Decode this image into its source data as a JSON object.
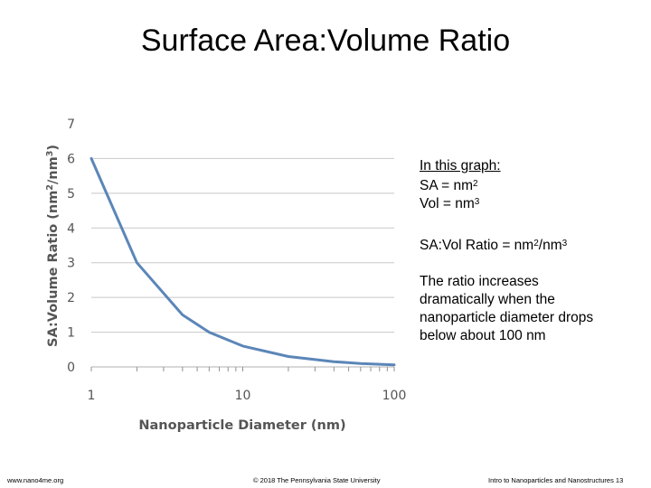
{
  "slide": {
    "title": "Surface Area:Volume Ratio"
  },
  "notes": {
    "heading": "In this graph:",
    "sa_prefix": "SA = nm",
    "sa_exp": "2",
    "vol_prefix": "Vol = nm",
    "vol_exp": "3",
    "ratio_prefix": "SA:Vol Ratio = nm",
    "ratio_exp1": "2",
    "ratio_mid": "/nm",
    "ratio_exp2": "3",
    "line1": "The ratio increases",
    "line2": "dramatically when the",
    "line3": "nanoparticle diameter drops",
    "line4": "below about 100 nm"
  },
  "footer": {
    "left": "www.nano4me.org",
    "center": "© 2018 The Pennsylvania State University",
    "right": "Intro to Nanoparticles and Nanostructures 13"
  },
  "chart_data": {
    "type": "line",
    "xscale": "log",
    "xlim": [
      1,
      100
    ],
    "ylim": [
      0,
      7
    ],
    "xticks": [
      1,
      10,
      100
    ],
    "xtick_labels": [
      "1",
      "10",
      "100"
    ],
    "yticks": [
      0,
      1,
      2,
      3,
      4,
      5,
      6,
      7
    ],
    "ytick_labels": [
      "0",
      "1",
      "2",
      "3",
      "4",
      "5",
      "6",
      "7"
    ],
    "xlabel": "Nanoparticle Diameter (nm)",
    "ylabel_prefix": "SA:Volume Ratio (nm",
    "ylabel_exp1": "2",
    "ylabel_mid": "/nm",
    "ylabel_exp2": "3",
    "ylabel_suffix": ")",
    "grid": "horizontal",
    "legend": "none",
    "series": [
      {
        "x": [
          1,
          2,
          4,
          6,
          10,
          20,
          40,
          60,
          100
        ],
        "y": [
          6,
          3,
          1.5,
          1,
          0.6,
          0.3,
          0.15,
          0.1,
          0.06
        ],
        "color": "#5b86b8"
      }
    ]
  }
}
